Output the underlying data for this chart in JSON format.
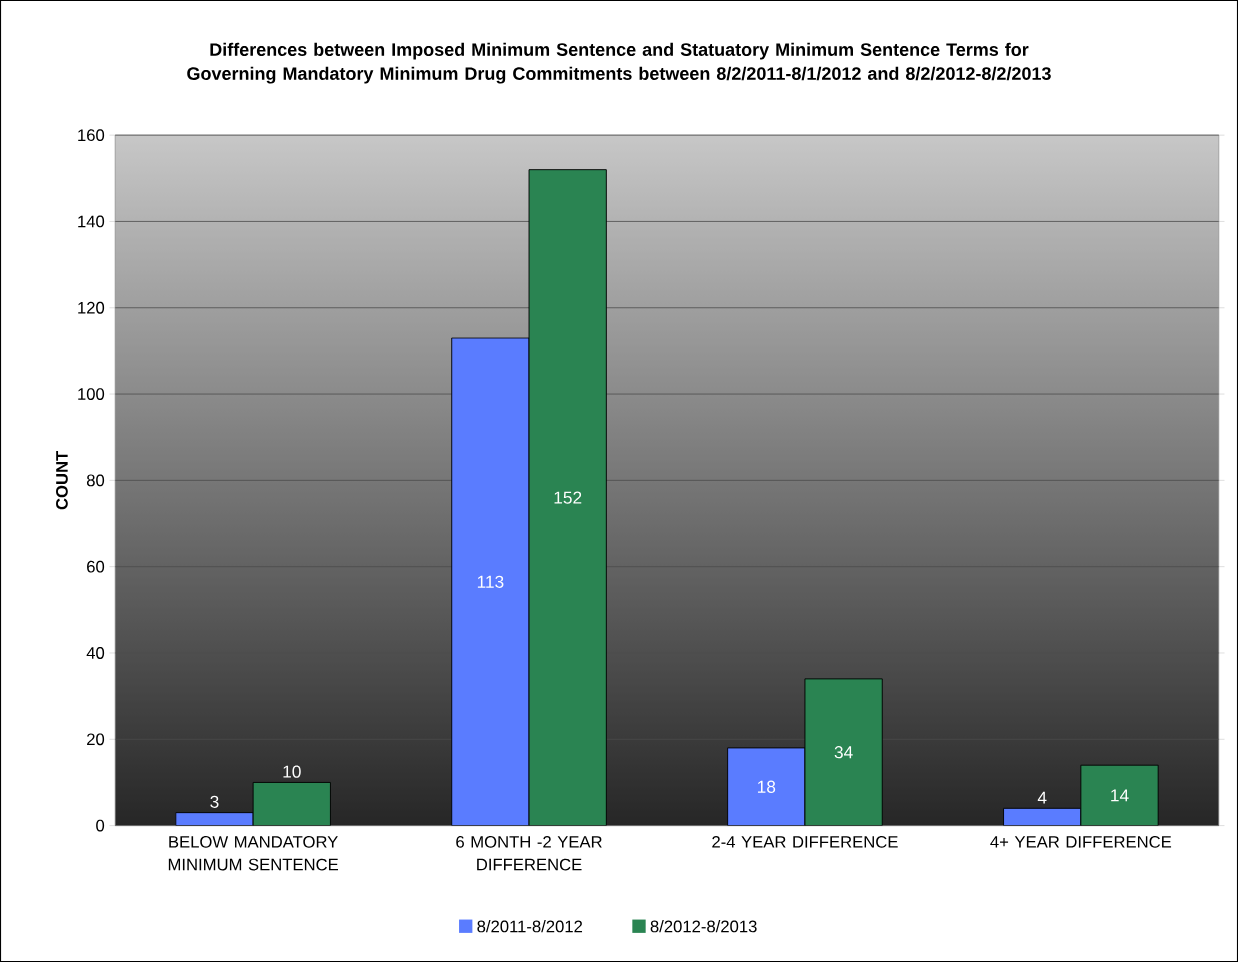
{
  "chart_data": {
    "type": "bar",
    "title": "Differences between Imposed Minimum Sentence and Statuatory Minimum Sentence Terms for Governing Mandatory Minimum Drug Commitments between 8/2/2011-8/1/2012 and 8/2/2012-8/2/2013",
    "ylabel": "COUNT",
    "categories": [
      "BELOW MANDATORY MINIMUM SENTENCE",
      "6 MONTH -2 YEAR DIFFERENCE",
      "2-4 YEAR DIFFERENCE",
      "4+ YEAR DIFFERENCE"
    ],
    "series": [
      {
        "name": "8/2011-8/2012",
        "color": "#5a7cff",
        "values": [
          3,
          113,
          18,
          4
        ],
        "value_labels": [
          "3",
          "113",
          "18",
          "4"
        ]
      },
      {
        "name": "8/2012-8/2013",
        "color": "#2a8452",
        "values": [
          10,
          152,
          34,
          14
        ],
        "value_labels": [
          "10",
          "152",
          "34",
          "14"
        ]
      }
    ],
    "ylim": [
      0,
      160
    ],
    "yticks": [
      0,
      20,
      40,
      60,
      80,
      100,
      120,
      140,
      160
    ],
    "grid": "y",
    "legend": "bottom"
  }
}
